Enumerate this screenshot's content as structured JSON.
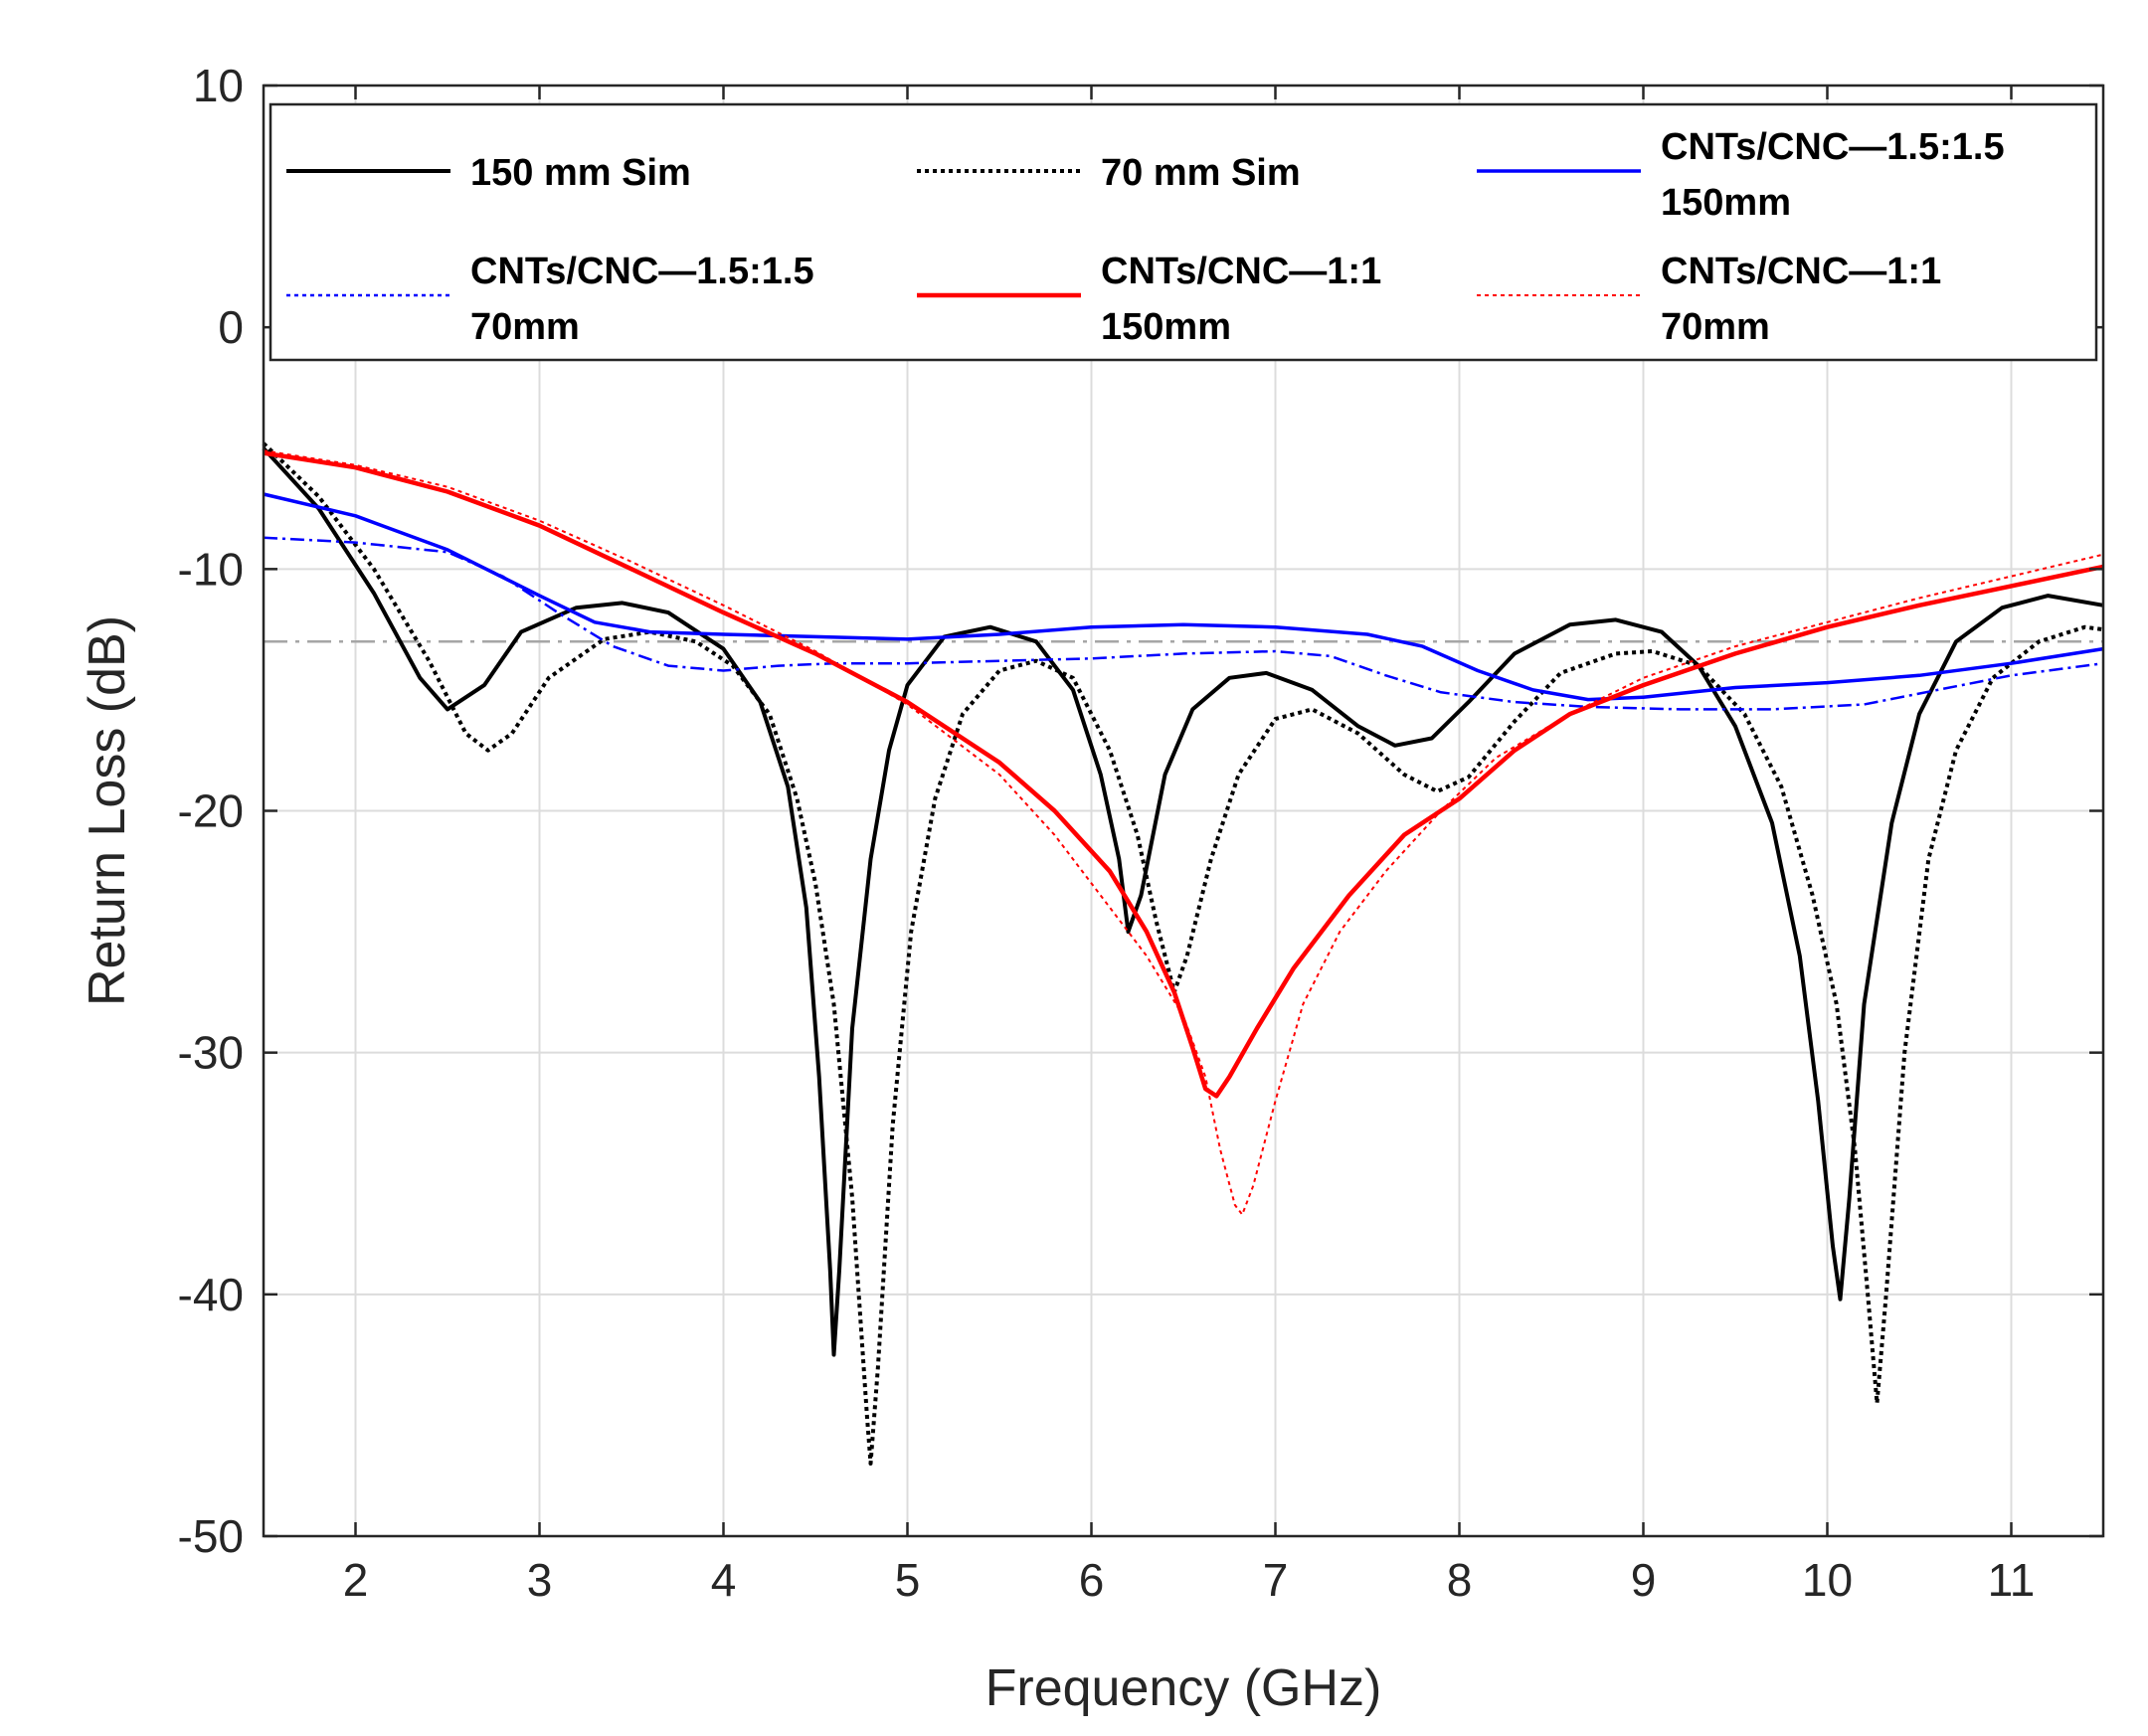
{
  "chart_data": {
    "type": "line",
    "title": "",
    "xlabel": "Frequency (GHz)",
    "ylabel": "Return Loss (dB)",
    "xlim": [
      1.5,
      11.5
    ],
    "ylim": [
      -50,
      10
    ],
    "xticks": [
      2,
      3,
      4,
      5,
      6,
      7,
      8,
      9,
      10,
      11
    ],
    "yticks": [
      -50,
      -40,
      -30,
      -20,
      -10,
      0,
      10
    ],
    "grid": true,
    "legend_position": "top",
    "reference_line": {
      "y": -13,
      "style": "dash-dot",
      "color": "#a6a6a6"
    },
    "series": [
      {
        "name": "150 mm Sim",
        "legend_lines": [
          "150 mm Sim"
        ],
        "color": "#000000",
        "style": "solid",
        "width": 4,
        "points": [
          [
            1.5,
            -5
          ],
          [
            1.8,
            -7.5
          ],
          [
            2.1,
            -11
          ],
          [
            2.35,
            -14.5
          ],
          [
            2.5,
            -15.8
          ],
          [
            2.7,
            -14.8
          ],
          [
            2.9,
            -12.6
          ],
          [
            3.2,
            -11.6
          ],
          [
            3.45,
            -11.4
          ],
          [
            3.7,
            -11.8
          ],
          [
            4.0,
            -13.3
          ],
          [
            4.2,
            -15.5
          ],
          [
            4.35,
            -19
          ],
          [
            4.45,
            -24
          ],
          [
            4.52,
            -31
          ],
          [
            4.58,
            -39
          ],
          [
            4.6,
            -42.5
          ],
          [
            4.63,
            -39
          ],
          [
            4.7,
            -29
          ],
          [
            4.8,
            -22
          ],
          [
            4.9,
            -17.5
          ],
          [
            5.0,
            -14.8
          ],
          [
            5.2,
            -12.8
          ],
          [
            5.45,
            -12.4
          ],
          [
            5.7,
            -13
          ],
          [
            5.9,
            -15
          ],
          [
            6.05,
            -18.5
          ],
          [
            6.15,
            -22
          ],
          [
            6.2,
            -25
          ],
          [
            6.27,
            -23.5
          ],
          [
            6.4,
            -18.5
          ],
          [
            6.55,
            -15.8
          ],
          [
            6.75,
            -14.5
          ],
          [
            6.95,
            -14.3
          ],
          [
            7.2,
            -15
          ],
          [
            7.45,
            -16.5
          ],
          [
            7.65,
            -17.3
          ],
          [
            7.85,
            -17
          ],
          [
            8.05,
            -15.5
          ],
          [
            8.3,
            -13.5
          ],
          [
            8.6,
            -12.3
          ],
          [
            8.85,
            -12.1
          ],
          [
            9.1,
            -12.6
          ],
          [
            9.3,
            -14
          ],
          [
            9.5,
            -16.5
          ],
          [
            9.7,
            -20.5
          ],
          [
            9.85,
            -26
          ],
          [
            9.95,
            -32
          ],
          [
            10.03,
            -38
          ],
          [
            10.07,
            -40.2
          ],
          [
            10.12,
            -36
          ],
          [
            10.2,
            -28
          ],
          [
            10.35,
            -20.5
          ],
          [
            10.5,
            -16
          ],
          [
            10.7,
            -13
          ],
          [
            10.95,
            -11.6
          ],
          [
            11.2,
            -11.1
          ],
          [
            11.5,
            -11.5
          ]
        ]
      },
      {
        "name": "70 mm Sim",
        "legend_lines": [
          "70 mm Sim"
        ],
        "color": "#000000",
        "style": "dotted",
        "width": 4,
        "points": [
          [
            1.5,
            -4.8
          ],
          [
            1.8,
            -7
          ],
          [
            2.1,
            -10
          ],
          [
            2.4,
            -13.8
          ],
          [
            2.6,
            -16.8
          ],
          [
            2.72,
            -17.5
          ],
          [
            2.85,
            -16.8
          ],
          [
            3.05,
            -14.5
          ],
          [
            3.35,
            -12.9
          ],
          [
            3.6,
            -12.6
          ],
          [
            3.85,
            -13
          ],
          [
            4.05,
            -14
          ],
          [
            4.25,
            -16
          ],
          [
            4.4,
            -19.5
          ],
          [
            4.5,
            -23
          ],
          [
            4.6,
            -28
          ],
          [
            4.7,
            -36
          ],
          [
            4.78,
            -45
          ],
          [
            4.8,
            -47
          ],
          [
            4.84,
            -43
          ],
          [
            4.92,
            -33
          ],
          [
            5.02,
            -25
          ],
          [
            5.15,
            -19.5
          ],
          [
            5.3,
            -16
          ],
          [
            5.5,
            -14.2
          ],
          [
            5.7,
            -13.8
          ],
          [
            5.9,
            -14.5
          ],
          [
            6.1,
            -17.5
          ],
          [
            6.25,
            -21
          ],
          [
            6.35,
            -24.5
          ],
          [
            6.45,
            -27.5
          ],
          [
            6.52,
            -26
          ],
          [
            6.65,
            -22
          ],
          [
            6.8,
            -18.5
          ],
          [
            7.0,
            -16.2
          ],
          [
            7.2,
            -15.8
          ],
          [
            7.45,
            -16.8
          ],
          [
            7.7,
            -18.5
          ],
          [
            7.88,
            -19.2
          ],
          [
            8.05,
            -18.6
          ],
          [
            8.3,
            -16.3
          ],
          [
            8.55,
            -14.3
          ],
          [
            8.85,
            -13.5
          ],
          [
            9.05,
            -13.4
          ],
          [
            9.3,
            -14
          ],
          [
            9.55,
            -16
          ],
          [
            9.75,
            -19
          ],
          [
            9.92,
            -23.5
          ],
          [
            10.05,
            -28
          ],
          [
            10.15,
            -34
          ],
          [
            10.22,
            -40
          ],
          [
            10.27,
            -44.5
          ],
          [
            10.32,
            -40
          ],
          [
            10.42,
            -30
          ],
          [
            10.55,
            -22
          ],
          [
            10.7,
            -17.5
          ],
          [
            10.9,
            -14.5
          ],
          [
            11.15,
            -13
          ],
          [
            11.4,
            -12.4
          ],
          [
            11.5,
            -12.5
          ]
        ]
      },
      {
        "name": "CNTs/CNC—1.5:1.5 150mm",
        "legend_lines": [
          "CNTs/CNC—1.5:1.5",
          "150mm"
        ],
        "color": "#0000ff",
        "style": "solid",
        "width": 3.5,
        "points": [
          [
            1.5,
            -6.9
          ],
          [
            2.0,
            -7.8
          ],
          [
            2.5,
            -9.2
          ],
          [
            3.0,
            -11.1
          ],
          [
            3.3,
            -12.2
          ],
          [
            3.6,
            -12.6
          ],
          [
            4.0,
            -12.7
          ],
          [
            4.5,
            -12.8
          ],
          [
            5.0,
            -12.9
          ],
          [
            5.5,
            -12.7
          ],
          [
            6.0,
            -12.4
          ],
          [
            6.5,
            -12.3
          ],
          [
            7.0,
            -12.4
          ],
          [
            7.5,
            -12.7
          ],
          [
            7.8,
            -13.2
          ],
          [
            8.1,
            -14.2
          ],
          [
            8.4,
            -15
          ],
          [
            8.7,
            -15.4
          ],
          [
            9.0,
            -15.3
          ],
          [
            9.5,
            -14.9
          ],
          [
            10.0,
            -14.7
          ],
          [
            10.5,
            -14.4
          ],
          [
            11.0,
            -13.9
          ],
          [
            11.5,
            -13.3
          ]
        ]
      },
      {
        "name": "CNTs/CNC—1.5:1.5 70mm",
        "legend_lines": [
          "CNTs/CNC—1.5:1.5",
          "70mm"
        ],
        "color": "#0000ff",
        "style": "dashdot",
        "width": 2.5,
        "points": [
          [
            1.5,
            -8.7
          ],
          [
            2.0,
            -8.9
          ],
          [
            2.5,
            -9.3
          ],
          [
            2.8,
            -10.3
          ],
          [
            3.1,
            -11.8
          ],
          [
            3.4,
            -13.2
          ],
          [
            3.7,
            -14
          ],
          [
            4.0,
            -14.2
          ],
          [
            4.3,
            -14
          ],
          [
            4.6,
            -13.9
          ],
          [
            5.0,
            -13.9
          ],
          [
            5.5,
            -13.8
          ],
          [
            6.0,
            -13.7
          ],
          [
            6.5,
            -13.5
          ],
          [
            7.0,
            -13.4
          ],
          [
            7.3,
            -13.6
          ],
          [
            7.6,
            -14.4
          ],
          [
            7.9,
            -15.1
          ],
          [
            8.3,
            -15.5
          ],
          [
            8.7,
            -15.7
          ],
          [
            9.2,
            -15.8
          ],
          [
            9.7,
            -15.8
          ],
          [
            10.2,
            -15.6
          ],
          [
            10.6,
            -15
          ],
          [
            11.0,
            -14.4
          ],
          [
            11.5,
            -13.9
          ]
        ]
      },
      {
        "name": "CNTs/CNC—1:1 150mm",
        "legend_lines": [
          "CNTs/CNC—1:1",
          "150mm"
        ],
        "color": "#ff0000",
        "style": "solid",
        "width": 4.5,
        "points": [
          [
            1.5,
            -5.2
          ],
          [
            2.0,
            -5.8
          ],
          [
            2.5,
            -6.8
          ],
          [
            3.0,
            -8.2
          ],
          [
            3.5,
            -10
          ],
          [
            4.0,
            -11.8
          ],
          [
            4.5,
            -13.5
          ],
          [
            5.0,
            -15.5
          ],
          [
            5.5,
            -18
          ],
          [
            5.8,
            -20
          ],
          [
            6.1,
            -22.5
          ],
          [
            6.3,
            -25
          ],
          [
            6.45,
            -27.5
          ],
          [
            6.55,
            -29.8
          ],
          [
            6.62,
            -31.5
          ],
          [
            6.68,
            -31.8
          ],
          [
            6.75,
            -31
          ],
          [
            6.9,
            -29
          ],
          [
            7.1,
            -26.5
          ],
          [
            7.4,
            -23.5
          ],
          [
            7.7,
            -21
          ],
          [
            8.0,
            -19.5
          ],
          [
            8.3,
            -17.5
          ],
          [
            8.6,
            -16
          ],
          [
            9.0,
            -14.8
          ],
          [
            9.5,
            -13.5
          ],
          [
            10.0,
            -12.4
          ],
          [
            10.5,
            -11.5
          ],
          [
            11.0,
            -10.7
          ],
          [
            11.5,
            -9.9
          ]
        ]
      },
      {
        "name": "CNTs/CNC—1:1 70mm",
        "legend_lines": [
          "CNTs/CNC—1:1",
          "70mm"
        ],
        "color": "#ff0000",
        "style": "dotted",
        "width": 2,
        "points": [
          [
            1.5,
            -5.1
          ],
          [
            2.0,
            -5.7
          ],
          [
            2.5,
            -6.6
          ],
          [
            3.0,
            -8
          ],
          [
            3.5,
            -9.7
          ],
          [
            4.0,
            -11.5
          ],
          [
            4.5,
            -13.4
          ],
          [
            5.0,
            -15.6
          ],
          [
            5.5,
            -18.5
          ],
          [
            5.8,
            -21
          ],
          [
            6.05,
            -23.5
          ],
          [
            6.3,
            -26
          ],
          [
            6.5,
            -28.5
          ],
          [
            6.62,
            -31
          ],
          [
            6.7,
            -34
          ],
          [
            6.78,
            -36.3
          ],
          [
            6.82,
            -36.7
          ],
          [
            6.88,
            -35.5
          ],
          [
            7.0,
            -32
          ],
          [
            7.15,
            -28
          ],
          [
            7.35,
            -25
          ],
          [
            7.6,
            -22.5
          ],
          [
            7.9,
            -20
          ],
          [
            8.2,
            -17.8
          ],
          [
            8.6,
            -16
          ],
          [
            9.0,
            -14.5
          ],
          [
            9.5,
            -13.2
          ],
          [
            10.0,
            -12.2
          ],
          [
            10.5,
            -11.2
          ],
          [
            11.0,
            -10.3
          ],
          [
            11.5,
            -9.4
          ]
        ]
      }
    ]
  }
}
